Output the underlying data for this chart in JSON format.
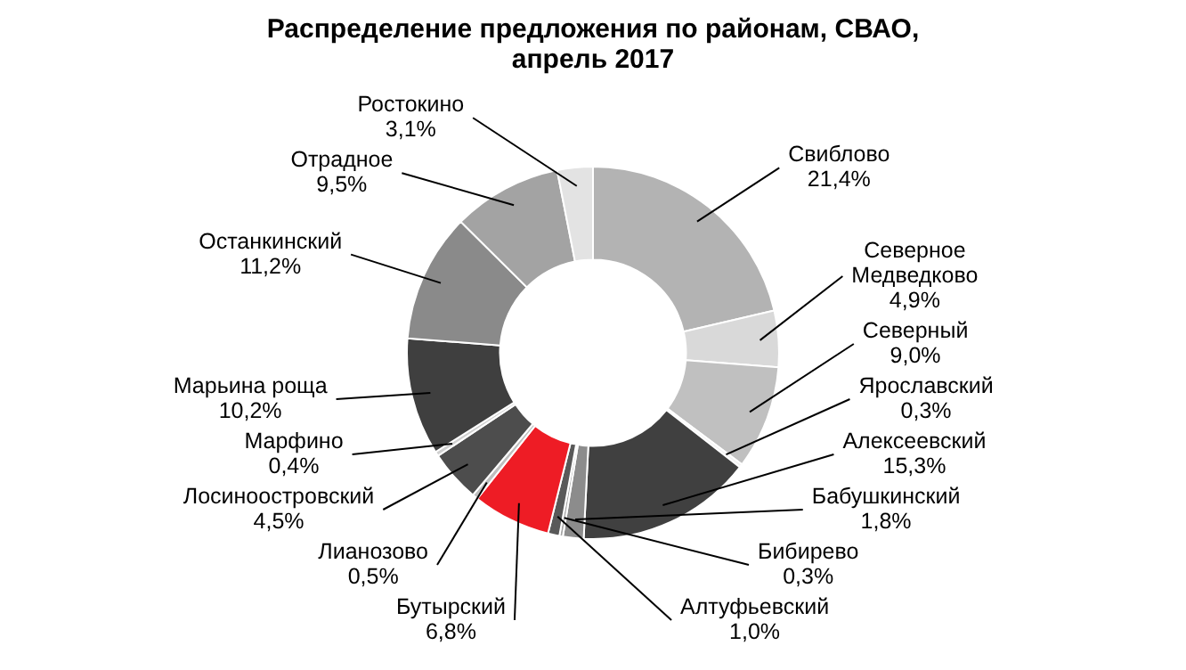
{
  "chart_data": {
    "type": "donut",
    "title": "Распределение предложения по районам, СВАО, апрель 2017",
    "categories": [
      "Свиблово",
      "Северное Медведково",
      "Северный",
      "Ярославский",
      "Алексеевский",
      "Бабушкинский",
      "Бибирево",
      "Алтуфьевский",
      "Бутырский",
      "Лианозово",
      "Лосиноостровский",
      "Марфино",
      "Марьина роща",
      "Останкинский",
      "Отрадное",
      "Ростокино"
    ],
    "values": [
      21.4,
      4.9,
      9.0,
      0.3,
      15.3,
      1.8,
      0.3,
      1.0,
      6.8,
      0.5,
      4.5,
      0.4,
      10.2,
      11.2,
      9.5,
      3.1
    ],
    "value_labels": [
      "21,4%",
      "4,9%",
      "9,0%",
      "0,3%",
      "15,3%",
      "1,8%",
      "0,3%",
      "1,0%",
      "6,8%",
      "0,5%",
      "4,5%",
      "0,4%",
      "10,2%",
      "11,2%",
      "9,5%",
      "3,1%"
    ],
    "colors": [
      "#b3b3b3",
      "#d9d9d9",
      "#c0c0c0",
      "#f2f2f2",
      "#404040",
      "#8c8c8c",
      "#a6a6a6",
      "#595959",
      "#ee1c25",
      "#bfbfbf",
      "#4d4d4d",
      "#d0d0d0",
      "#3f3f3f",
      "#8a8a8a",
      "#a3a3a3",
      "#e3e3e3"
    ],
    "legend": false
  }
}
